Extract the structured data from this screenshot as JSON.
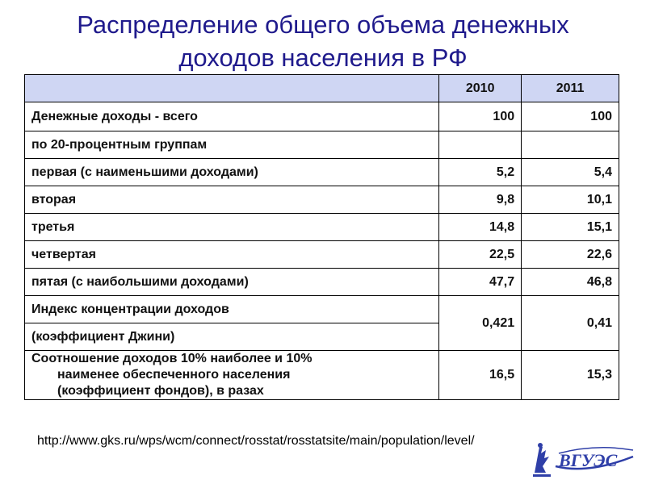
{
  "title": {
    "line1": "Распределение общего объема денежных",
    "line2": "доходов населения  в РФ"
  },
  "table": {
    "columns": [
      "",
      "2010",
      "2011"
    ],
    "rows": [
      {
        "label": "Денежные доходы - всего",
        "v2010": "100",
        "v2011": "100"
      },
      {
        "label": "по 20-процентным группам",
        "v2010": "",
        "v2011": ""
      },
      {
        "label": "первая (с наименьшими доходами)",
        "v2010": "5,2",
        "v2011": "5,4"
      },
      {
        "label": "вторая",
        "v2010": "9,8",
        "v2011": "10,1"
      },
      {
        "label": "третья",
        "v2010": "14,8",
        "v2011": "15,1"
      },
      {
        "label": "четвертая",
        "v2010": "22,5",
        "v2011": "22,6"
      },
      {
        "label": "пятая (с наибольшими доходами)",
        "v2010": "47,7",
        "v2011": "46,8"
      }
    ],
    "gini": {
      "label_line1": "Индекс концентрации доходов",
      "label_line2": "(коэффициент Джини)",
      "v2010": "0,421",
      "v2011": "0,41"
    },
    "ratio": {
      "label_line1": "Соотношение доходов 10% наиболее и 10%",
      "label_line2": "наименее обеспеченного населения",
      "label_line3": "(коэффициент фондов), в разах",
      "v2010": "16,5",
      "v2011": "15,3"
    }
  },
  "source_url": "http://www.gks.ru/wps/wcm/connect/rosstat/rosstatsite/main/population/level/",
  "logo": {
    "text": "ВГУЭС",
    "icon": "university-emblem-icon"
  },
  "colors": {
    "title": "#1f1a8c",
    "header_bg": "#cfd6f3",
    "logo": "#2f3fa8"
  }
}
